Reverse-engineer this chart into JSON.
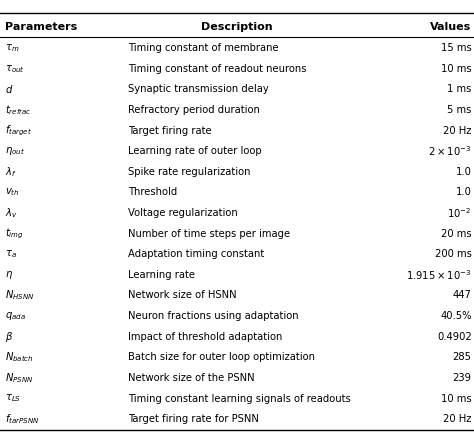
{
  "headers": [
    "Parameters",
    "Description",
    "Values"
  ],
  "rows_desc": [
    "Timing constant of membrane",
    "Timing constant of readout neurons",
    "Synaptic transmission delay",
    "Refractory period duration",
    "Target firing rate",
    "Learning rate of outer loop",
    "Spike rate regularization",
    "Threshold",
    "Voltage regularization",
    "Number of time steps per image",
    "Adaptation timing constant",
    "Learning rate",
    "Network size of HSNN",
    "Neuron fractions using adaptation",
    "Impact of threshold adaptation",
    "Batch size for outer loop optimization",
    "Network size of the PSNN",
    "Timing constant learning signals of readouts",
    "Target firing rate for PSNN"
  ],
  "param_labels": [
    "$\\tau_m$",
    "$\\tau_{out}$",
    "$d$",
    "$t_{refrac}$",
    "$f_{target}$",
    "$\\eta_{out}$",
    "$\\lambda_f$",
    "$v_{th}$",
    "$\\lambda_v$",
    "$t_{img}$",
    "$\\tau_a$",
    "$\\eta$",
    "$N_{HSNN}$",
    "$q_{ada}$",
    "$\\beta$",
    "$N_{batch}$",
    "$N_{PSNN}$",
    "$\\tau_{LS}$",
    "$f_{tarPSNN}$"
  ],
  "value_labels": [
    "15 ms",
    "10 ms",
    "1 ms",
    "5 ms",
    "20 Hz",
    "$2 \\times 10^{-3}$",
    "1.0",
    "1.0",
    "$10^{-2}$",
    "20 ms",
    "200 ms",
    "$1.915 \\times 10^{-3}$",
    "447",
    "40.5%",
    "0.4902",
    "285",
    "239",
    "10 ms",
    "20 Hz"
  ],
  "fig_width": 4.74,
  "fig_height": 4.4,
  "dpi": 100,
  "font_size": 7.2,
  "header_font_size": 8.0
}
